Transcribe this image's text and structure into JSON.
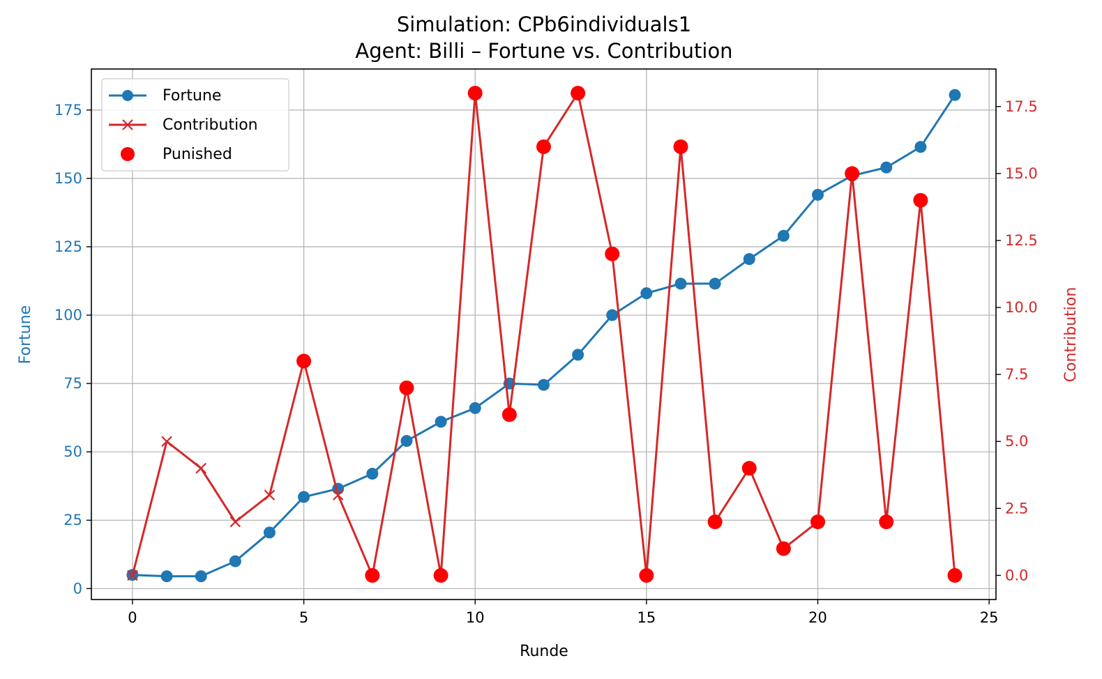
{
  "chart_data": {
    "type": "line",
    "title": "Simulation: CPb6individuals1",
    "subtitle": "Agent: Billi – Fortune vs. Contribution",
    "xlabel": "Runde",
    "ylabel_left": "Fortune",
    "ylabel_right": "Contribution",
    "xlim": [
      -1.2,
      25.2
    ],
    "ylim_left": [
      -4,
      190
    ],
    "ylim_right": [
      -0.9,
      18.9
    ],
    "x_ticks": [
      0,
      5,
      10,
      15,
      20,
      25
    ],
    "y_left_ticks": [
      0,
      25,
      50,
      75,
      100,
      125,
      150,
      175
    ],
    "y_right_ticks": [
      "0.0",
      "2.5",
      "5.0",
      "7.5",
      "10.0",
      "12.5",
      "15.0",
      "17.5"
    ],
    "grid": true,
    "legend_position": "top-left",
    "colors": {
      "fortune": "#1f77b4",
      "contribution": "#d62728",
      "punished": "#ff0000"
    },
    "x": [
      0,
      1,
      2,
      3,
      4,
      5,
      6,
      7,
      8,
      9,
      10,
      11,
      12,
      13,
      14,
      15,
      16,
      17,
      18,
      19,
      20,
      21,
      22,
      23,
      24
    ],
    "series": [
      {
        "name": "Fortune",
        "axis": "left",
        "marker": "circle",
        "values": [
          5,
          4.5,
          4.5,
          10,
          20.5,
          33.5,
          36.5,
          42,
          54,
          61,
          66,
          75,
          74.5,
          85.5,
          100,
          108,
          111.5,
          111.5,
          120.5,
          129,
          144,
          151,
          154,
          161.5,
          180.5
        ]
      },
      {
        "name": "Contribution",
        "axis": "right",
        "marker": "x",
        "values": [
          0,
          5,
          4,
          2,
          3,
          8,
          3,
          0,
          7,
          0,
          18,
          6,
          16,
          18,
          12,
          0,
          16,
          2,
          4,
          1,
          2,
          15,
          2,
          14,
          0
        ]
      },
      {
        "name": "Punished",
        "axis": "right",
        "marker": "dot",
        "x": [
          5,
          7,
          8,
          9,
          10,
          11,
          12,
          13,
          14,
          15,
          16,
          17,
          18,
          19,
          20,
          21,
          22,
          23,
          24
        ],
        "values": [
          8,
          0,
          7,
          0,
          18,
          6,
          16,
          18,
          12,
          0,
          16,
          2,
          4,
          1,
          2,
          15,
          2,
          14,
          0
        ]
      }
    ]
  }
}
